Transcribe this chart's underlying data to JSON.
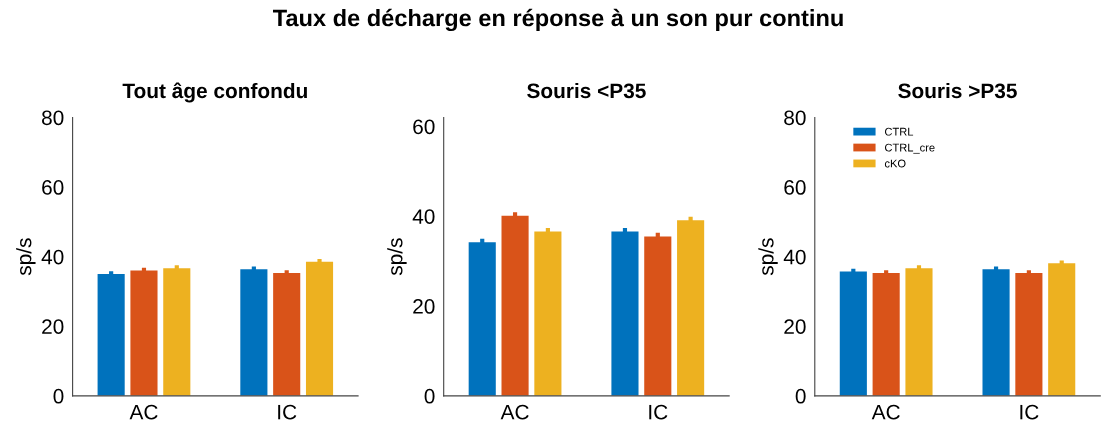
{
  "chart_data": [
    {
      "type": "bar",
      "title": "Tout âge confondu",
      "ylabel": "sp/s",
      "annotations": [
        "Taux de décharge en réponse à un son pur continu"
      ],
      "categories": [
        "AC",
        "IC"
      ],
      "ylim": [
        0,
        80
      ],
      "yticks": [
        0,
        20,
        40,
        60,
        80
      ],
      "grid": false,
      "legend": false,
      "series": [
        {
          "color": "#0072bd",
          "values": [
            35.0,
            36.4
          ],
          "errors": [
            0.8,
            0.8
          ]
        },
        {
          "color": "#d95319",
          "values": [
            36.0,
            35.3
          ],
          "errors": [
            0.8,
            0.8
          ]
        },
        {
          "color": "#edb120",
          "values": [
            36.7,
            38.5
          ],
          "errors": [
            0.8,
            0.8
          ]
        }
      ]
    },
    {
      "type": "bar",
      "title": "Souris <P35",
      "ylabel": "sp/s",
      "categories": [
        "AC",
        "IC"
      ],
      "ylim": [
        0,
        62
      ],
      "yticks": [
        0,
        20,
        40,
        60
      ],
      "grid": false,
      "legend": false,
      "series": [
        {
          "color": "#0072bd",
          "values": [
            34.2,
            36.6
          ],
          "errors": [
            0.8,
            0.8
          ]
        },
        {
          "color": "#d95319",
          "values": [
            40.1,
            35.5
          ],
          "errors": [
            0.8,
            0.8
          ]
        },
        {
          "color": "#edb120",
          "values": [
            36.6,
            39.1
          ],
          "errors": [
            0.8,
            0.8
          ]
        }
      ]
    },
    {
      "type": "bar",
      "title": "Souris >P35",
      "ylabel": "sp/s",
      "categories": [
        "AC",
        "IC"
      ],
      "ylim": [
        0,
        80
      ],
      "yticks": [
        0,
        20,
        40,
        60,
        80
      ],
      "grid": false,
      "legend": "top left",
      "series": [
        {
          "name": "CTRL",
          "color": "#0072bd",
          "values": [
            35.7,
            36.4
          ],
          "errors": [
            0.8,
            0.8
          ]
        },
        {
          "name": "CTRL_cre",
          "color": "#d95319",
          "values": [
            35.3,
            35.3
          ],
          "errors": [
            0.8,
            0.8
          ]
        },
        {
          "name": "cKO",
          "color": "#edb120",
          "values": [
            36.7,
            38.1
          ],
          "errors": [
            0.8,
            0.8
          ]
        }
      ]
    }
  ]
}
